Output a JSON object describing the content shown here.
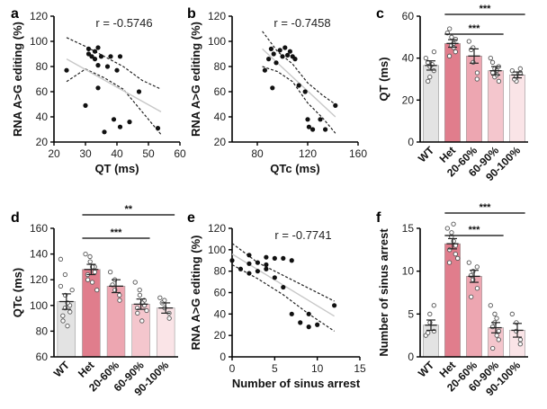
{
  "figure": {
    "panel_letters": [
      "a",
      "b",
      "c",
      "d",
      "e",
      "f"
    ],
    "significance": {
      "c": [
        "***",
        "***"
      ],
      "d": [
        "**",
        "***"
      ],
      "f": [
        "***",
        "***"
      ]
    },
    "colors": {
      "points": "#111111",
      "fit_line": "#c8c8c8",
      "ci_line": "#222222",
      "WT": "#e3e3e3",
      "Het": "#e07d8c",
      "20-60%": "#eda6b1",
      "60-90%": "#f4c6cd",
      "90-100%": "#fae4e7"
    }
  },
  "chart_data": [
    {
      "panel": "a",
      "type": "scatter",
      "annotation": "r = -0.5746",
      "xlabel": "QT (ms)",
      "ylabel": "RNA A>G editing (%)",
      "xlim": [
        20,
        60
      ],
      "ylim": [
        20,
        120
      ],
      "xticks": [
        "20",
        "30",
        "40",
        "50",
        "60"
      ],
      "yticks": [
        "20",
        "40",
        "60",
        "80",
        "100",
        "120"
      ],
      "points": [
        [
          24,
          77
        ],
        [
          30,
          49
        ],
        [
          31,
          94
        ],
        [
          31,
          90
        ],
        [
          32,
          88
        ],
        [
          33,
          92
        ],
        [
          33,
          86
        ],
        [
          34,
          95
        ],
        [
          34,
          81
        ],
        [
          34,
          63
        ],
        [
          35,
          88
        ],
        [
          36,
          28
        ],
        [
          37,
          80
        ],
        [
          38,
          88
        ],
        [
          39,
          38
        ],
        [
          40,
          77
        ],
        [
          41,
          32
        ],
        [
          41,
          88
        ],
        [
          44,
          36
        ],
        [
          47,
          60
        ],
        [
          53,
          31
        ]
      ],
      "fit": [
        [
          24,
          86
        ],
        [
          54,
          44
        ]
      ],
      "ci_upper": [
        [
          24,
          103
        ],
        [
          30,
          96
        ],
        [
          36,
          88
        ],
        [
          42,
          80
        ],
        [
          48,
          69
        ],
        [
          54,
          62
        ]
      ],
      "ci_lower": [
        [
          24,
          68
        ],
        [
          30,
          78
        ],
        [
          36,
          71
        ],
        [
          42,
          62
        ],
        [
          48,
          44
        ],
        [
          54,
          26
        ]
      ]
    },
    {
      "panel": "b",
      "type": "scatter",
      "annotation": "r = -0.7458",
      "xlabel": "QTc (ms)",
      "ylabel": "RNA A>G editing (%)",
      "xlim": [
        60,
        160
      ],
      "ylim": [
        20,
        120
      ],
      "xticks": [
        "80",
        "120",
        "160"
      ],
      "yticks": [
        "20",
        "40",
        "60",
        "80",
        "100",
        "120"
      ],
      "points": [
        [
          86,
          77
        ],
        [
          89,
          86
        ],
        [
          91,
          94
        ],
        [
          92,
          63
        ],
        [
          93,
          90
        ],
        [
          95,
          83
        ],
        [
          98,
          93
        ],
        [
          100,
          88
        ],
        [
          102,
          95
        ],
        [
          104,
          89
        ],
        [
          106,
          92
        ],
        [
          108,
          88
        ],
        [
          110,
          86
        ],
        [
          113,
          65
        ],
        [
          118,
          60
        ],
        [
          120,
          38
        ],
        [
          121,
          32
        ],
        [
          124,
          30
        ],
        [
          130,
          38
        ],
        [
          134,
          30
        ],
        [
          142,
          49
        ]
      ],
      "fit": [
        [
          84,
          94
        ],
        [
          142,
          40
        ]
      ],
      "ci_upper": [
        [
          84,
          108
        ],
        [
          96,
          92
        ],
        [
          108,
          82
        ],
        [
          120,
          67
        ],
        [
          132,
          57
        ],
        [
          142,
          50
        ]
      ],
      "ci_lower": [
        [
          84,
          80
        ],
        [
          96,
          76
        ],
        [
          108,
          68
        ],
        [
          120,
          51
        ],
        [
          132,
          39
        ],
        [
          142,
          27
        ]
      ]
    },
    {
      "panel": "c",
      "type": "bar",
      "xlabel": "",
      "ylabel": "QT (ms)",
      "ylim": [
        0,
        60
      ],
      "yticks": [
        "0",
        "20",
        "40",
        "60"
      ],
      "categories": [
        "WT",
        "Het",
        "20-60%",
        "60-90%",
        "90-100%"
      ],
      "values": [
        36.5,
        47,
        41,
        34,
        32
      ],
      "errors": [
        2.2,
        1.8,
        3.4,
        2.0,
        1.4
      ],
      "points": [
        [
          40,
          36,
          31,
          43,
          34,
          29,
          38,
          37
        ],
        [
          52,
          50,
          46,
          49,
          43,
          54,
          41,
          45,
          47
        ],
        [
          48,
          38,
          45,
          33,
          30,
          44
        ],
        [
          40,
          35,
          31,
          29,
          36,
          33,
          38,
          32,
          34
        ],
        [
          34,
          29,
          31,
          33,
          35,
          30
        ]
      ]
    },
    {
      "panel": "d",
      "type": "bar",
      "xlabel": "",
      "ylabel": "QTc (ms)",
      "ylim": [
        60,
        160
      ],
      "yticks": [
        "60",
        "80",
        "100",
        "120",
        "140",
        "160"
      ],
      "categories": [
        "WT",
        "Het",
        "20-60%",
        "60-90%",
        "90-100%"
      ],
      "values": [
        103,
        128,
        115,
        101,
        98
      ],
      "errors": [
        6,
        4,
        5,
        4,
        4
      ],
      "points": [
        [
          136,
          124,
          108,
          100,
          95,
          92,
          88,
          84,
          102,
          112,
          115,
          98
        ],
        [
          140,
          138,
          134,
          130,
          126,
          124,
          120,
          118,
          130,
          112
        ],
        [
          126,
          120,
          112,
          108,
          104,
          116
        ],
        [
          118,
          112,
          108,
          104,
          100,
          98,
          94,
          88,
          102,
          96
        ],
        [
          106,
          104,
          98,
          94,
          90,
          102
        ]
      ]
    },
    {
      "panel": "e",
      "type": "scatter",
      "annotation": "r = -0.7741",
      "xlabel": "Number of sinus arrest",
      "ylabel": "RNA A>G editing (%)",
      "xlim": [
        0,
        15
      ],
      "ylim": [
        0,
        120
      ],
      "xticks": [
        "0",
        "5",
        "10",
        "15"
      ],
      "yticks": [
        "0",
        "20",
        "40",
        "60",
        "80",
        "100",
        "120"
      ],
      "points": [
        [
          0,
          90
        ],
        [
          1,
          82
        ],
        [
          2,
          78
        ],
        [
          2,
          95
        ],
        [
          2,
          87
        ],
        [
          3,
          80
        ],
        [
          3,
          88
        ],
        [
          4,
          82
        ],
        [
          4,
          93
        ],
        [
          4,
          86
        ],
        [
          5,
          74
        ],
        [
          5,
          92
        ],
        [
          6,
          65
        ],
        [
          6,
          92
        ],
        [
          7,
          90
        ],
        [
          7,
          40
        ],
        [
          8,
          32
        ],
        [
          9,
          28
        ],
        [
          9,
          40
        ],
        [
          10,
          30
        ],
        [
          12,
          48
        ]
      ],
      "fit": [
        [
          0,
          96
        ],
        [
          12,
          38
        ]
      ],
      "ci_upper": [
        [
          0,
          106
        ],
        [
          3,
          88
        ],
        [
          6,
          76
        ],
        [
          9,
          64
        ],
        [
          12,
          52
        ]
      ],
      "ci_lower": [
        [
          0,
          86
        ],
        [
          3,
          73
        ],
        [
          6,
          58
        ],
        [
          9,
          40
        ],
        [
          12,
          24
        ]
      ]
    },
    {
      "panel": "f",
      "type": "bar",
      "xlabel": "",
      "ylabel": "Number of sinus arrest",
      "ylim": [
        0,
        15
      ],
      "yticks": [
        "0",
        "5",
        "10",
        "15"
      ],
      "categories": [
        "WT",
        "Het",
        "20-60%",
        "60-90%",
        "90-100%"
      ],
      "values": [
        3.7,
        13.2,
        9.4,
        3.4,
        3.1
      ],
      "errors": [
        0.6,
        0.6,
        0.7,
        0.6,
        0.8
      ],
      "points": [
        [
          2.5,
          4,
          5,
          3,
          6,
          2.8
        ],
        [
          15,
          14.5,
          14,
          13,
          12,
          12.5,
          11,
          13.5,
          15.5,
          11.5
        ],
        [
          11,
          10,
          9,
          8,
          10.5,
          7,
          9.5
        ],
        [
          6,
          5,
          4,
          3,
          2,
          1,
          3.5,
          2.5,
          4.5
        ],
        [
          5,
          4,
          3,
          2,
          1.5
        ]
      ]
    }
  ]
}
